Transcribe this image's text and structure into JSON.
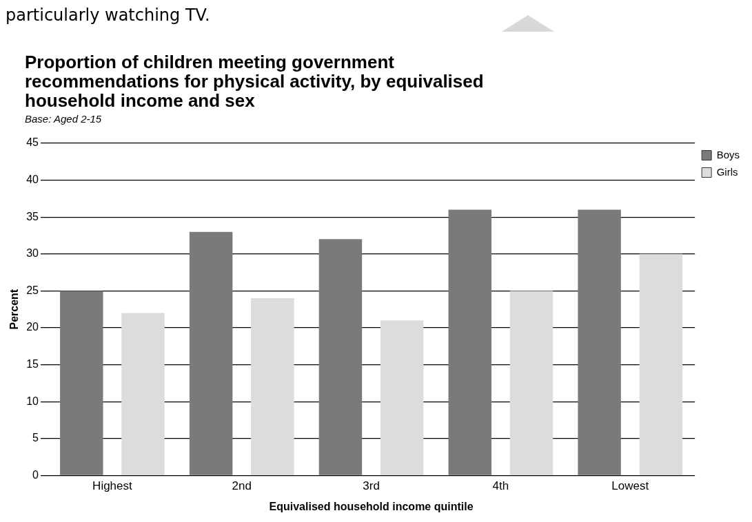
{
  "chart_data": {
    "type": "bar",
    "title": "Proportion of children meeting government recommendations for physical activity, by equivalised household income and sex",
    "subtitle": "Base: Aged 2-15",
    "annotations": [
      "particularly watching TV."
    ],
    "xlabel": "Equivalised household income quintile",
    "ylabel": "Percent",
    "categories": [
      "Highest",
      "2nd",
      "3rd",
      "4th",
      "Lowest"
    ],
    "series": [
      {
        "name": "Boys",
        "color": "#7a7a7a",
        "values": [
          25,
          33,
          32,
          36,
          36
        ]
      },
      {
        "name": "Girls",
        "color": "#dcdcdc",
        "values": [
          22,
          24,
          21,
          25,
          30
        ]
      }
    ],
    "ylim": [
      0,
      45
    ],
    "yticks": [
      0,
      5,
      10,
      15,
      20,
      25,
      30,
      35,
      40,
      45
    ],
    "grid": "y",
    "legend": "top right"
  }
}
